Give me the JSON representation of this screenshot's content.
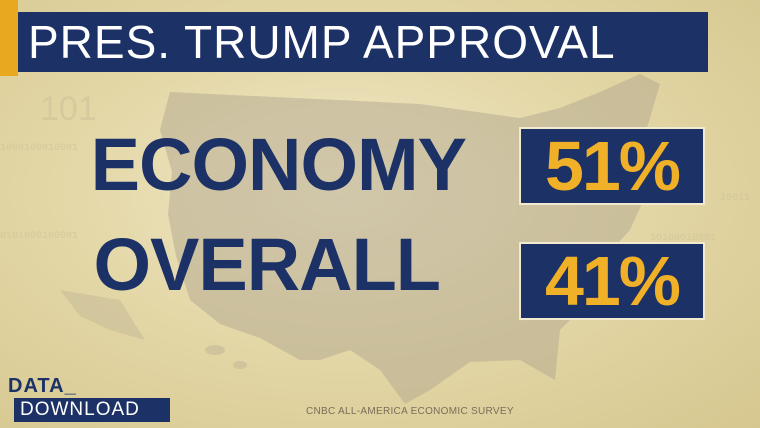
{
  "title": "PRES. TRUMP APPROVAL",
  "rows": [
    {
      "label": "ECONOMY",
      "value": "51%"
    },
    {
      "label": "OVERALL",
      "value": "41%"
    }
  ],
  "logo": {
    "line1": "DATA_",
    "line2": "DOWNLOAD"
  },
  "source": "CNBC ALL-AMERICA ECONOMIC SURVEY",
  "colors": {
    "navy": "#1c3166",
    "gold": "#f0b027",
    "background": "#e4d8a8",
    "accent": "#e8a820"
  }
}
